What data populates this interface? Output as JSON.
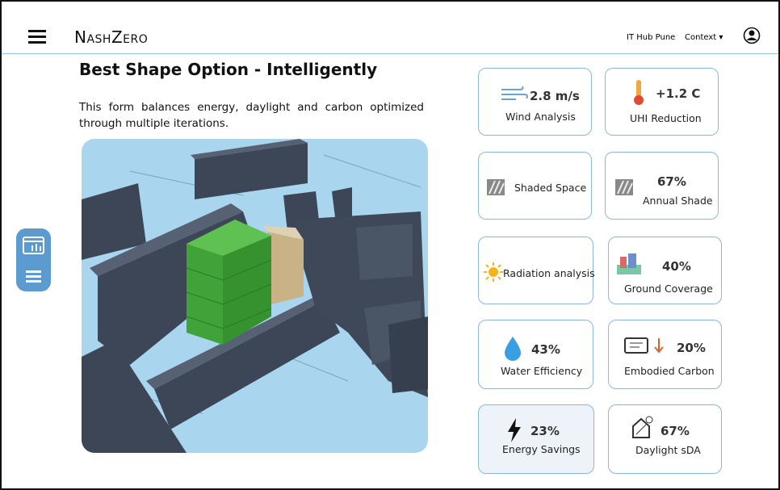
{
  "header": {
    "brand": "NashZero",
    "location": "IT Hub Pune",
    "context": "Context"
  },
  "main": {
    "title": "Best Shape Option - Intelligently",
    "description": "This form balances energy, daylight and carbon optimized through multiple iterations."
  },
  "cards": [
    {
      "value": "2.8 m/s",
      "label": "Wind Analysis"
    },
    {
      "value": "+1.2 C",
      "label": "UHI Reduction"
    },
    {
      "label": "Shaded Space"
    },
    {
      "value": "67%",
      "label": "Annual Shade"
    },
    {
      "label": "Radiation analysis"
    },
    {
      "value": "40%",
      "label": "Ground Coverage"
    },
    {
      "value": "43%",
      "label": "Water Efficiency"
    },
    {
      "value": "20%",
      "label": "Embodied Carbon"
    },
    {
      "value": "23%",
      "label": "Energy Savings"
    },
    {
      "value": "67%",
      "label": "Daylight sDA"
    }
  ]
}
